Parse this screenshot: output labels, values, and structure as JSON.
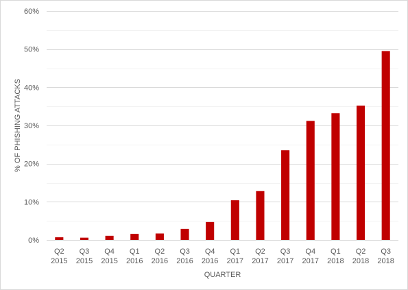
{
  "chart_data": {
    "type": "bar",
    "categories": [
      [
        "Q2",
        "2015"
      ],
      [
        "Q3",
        "2015"
      ],
      [
        "Q4",
        "2015"
      ],
      [
        "Q1",
        "2016"
      ],
      [
        "Q2",
        "2016"
      ],
      [
        "Q3",
        "2016"
      ],
      [
        "Q4",
        "2016"
      ],
      [
        "Q1",
        "2017"
      ],
      [
        "Q2",
        "2017"
      ],
      [
        "Q3",
        "2017"
      ],
      [
        "Q4",
        "2017"
      ],
      [
        "Q1",
        "2018"
      ],
      [
        "Q2",
        "2018"
      ],
      [
        "Q3",
        "2018"
      ]
    ],
    "values": [
      0.7,
      0.6,
      1.1,
      1.6,
      1.7,
      2.9,
      4.7,
      10.4,
      12.8,
      23.5,
      31.2,
      33.2,
      35.2,
      49.5
    ],
    "xlabel": "QUARTER",
    "ylabel": "% OF PHISHING ATTACKS",
    "ylim": [
      0,
      60
    ],
    "yticks": [
      0,
      10,
      20,
      30,
      40,
      50,
      60
    ],
    "ytick_labels": [
      "0%",
      "10%",
      "20%",
      "30%",
      "40%",
      "50%",
      "60%"
    ],
    "grid": true,
    "bar_color": "#c00000",
    "legend": false
  }
}
